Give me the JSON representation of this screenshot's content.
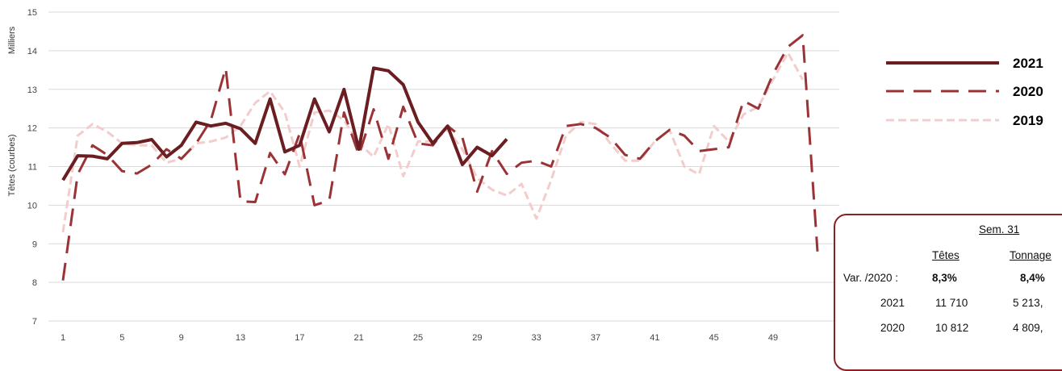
{
  "chart_data": {
    "type": "line",
    "ylabel": "Têtes (courbes)",
    "y_units": "Milliers",
    "ylim": [
      7,
      15
    ],
    "yticks": [
      7,
      8,
      9,
      10,
      11,
      12,
      13,
      14,
      15
    ],
    "xlim": [
      1,
      52
    ],
    "xticks": [
      1,
      5,
      9,
      13,
      17,
      21,
      25,
      29,
      33,
      37,
      41,
      45,
      49
    ],
    "grid": true,
    "legend_position": "right",
    "series": [
      {
        "name": "2021",
        "style": "solid",
        "color": "#6b1e22",
        "x": [
          1,
          2,
          3,
          4,
          5,
          6,
          7,
          8,
          9,
          10,
          11,
          12,
          13,
          14,
          15,
          16,
          17,
          18,
          19,
          20,
          21,
          22,
          23,
          24,
          25,
          26,
          27,
          28,
          29,
          30,
          31
        ],
        "values": [
          10.65,
          11.28,
          11.27,
          11.2,
          11.6,
          11.62,
          11.7,
          11.25,
          11.55,
          12.15,
          12.05,
          12.12,
          11.98,
          11.6,
          12.75,
          11.38,
          11.55,
          12.75,
          11.9,
          13.0,
          11.45,
          13.55,
          13.48,
          13.12,
          12.15,
          11.6,
          12.05,
          11.05,
          11.5,
          11.28,
          11.71
        ]
      },
      {
        "name": "2020",
        "style": "dashed",
        "color": "#9b3336",
        "x": [
          1,
          2,
          3,
          4,
          5,
          6,
          7,
          8,
          9,
          10,
          11,
          12,
          13,
          14,
          15,
          16,
          17,
          18,
          19,
          20,
          21,
          22,
          23,
          24,
          25,
          26,
          27,
          28,
          29,
          30,
          31,
          32,
          33,
          34,
          35,
          36,
          37,
          38,
          39,
          40,
          41,
          42,
          43,
          44,
          45,
          46,
          47,
          48,
          49,
          50,
          51,
          52
        ],
        "values": [
          8.05,
          10.8,
          11.55,
          11.3,
          10.88,
          10.82,
          11.05,
          11.45,
          11.2,
          11.6,
          12.2,
          13.55,
          10.1,
          10.08,
          11.35,
          10.8,
          11.85,
          10.0,
          10.12,
          12.4,
          11.3,
          12.48,
          11.2,
          12.55,
          11.6,
          11.55,
          12.05,
          11.75,
          10.35,
          11.4,
          10.81,
          11.1,
          11.15,
          11.0,
          12.05,
          12.1,
          12.0,
          11.75,
          11.3,
          11.2,
          11.65,
          11.95,
          11.8,
          11.4,
          11.45,
          11.5,
          12.7,
          12.5,
          13.4,
          14.1,
          14.4,
          8.8
        ]
      },
      {
        "name": "2019",
        "style": "dotted",
        "color": "#f3cccc",
        "x": [
          1,
          2,
          3,
          4,
          5,
          6,
          7,
          8,
          9,
          10,
          11,
          12,
          13,
          14,
          15,
          16,
          17,
          18,
          19,
          20,
          21,
          22,
          23,
          24,
          25,
          26,
          27,
          28,
          29,
          30,
          31,
          32,
          33,
          34,
          35,
          36,
          37,
          38,
          39,
          40,
          41,
          42,
          43,
          44,
          45,
          46,
          47,
          48,
          49,
          50,
          51
        ],
        "values": [
          9.3,
          11.8,
          12.1,
          11.9,
          11.6,
          11.55,
          11.55,
          11.1,
          11.2,
          11.6,
          11.65,
          11.75,
          12.05,
          12.65,
          12.95,
          12.4,
          11.0,
          12.4,
          12.45,
          12.2,
          11.6,
          11.25,
          12.1,
          10.75,
          11.65,
          11.65,
          11.95,
          11.45,
          10.7,
          10.4,
          10.25,
          10.55,
          9.65,
          10.65,
          11.8,
          12.15,
          12.1,
          11.6,
          11.15,
          11.15,
          11.65,
          11.95,
          11.0,
          10.8,
          12.05,
          11.65,
          12.35,
          12.55,
          13.25,
          13.95,
          13.25
        ]
      }
    ],
    "summary_box": {
      "title": "Sem. 31",
      "headers": [
        "Têtes",
        "Tonnage"
      ],
      "rows": [
        {
          "label": "Var. /2020 :",
          "tetes": "8,3%",
          "tonnage": "8,4%"
        },
        {
          "label": "2021",
          "tetes": "11 710",
          "tonnage": "5 213,"
        },
        {
          "label": "2020",
          "tetes": "10 812",
          "tonnage": "4 809,"
        }
      ]
    }
  }
}
